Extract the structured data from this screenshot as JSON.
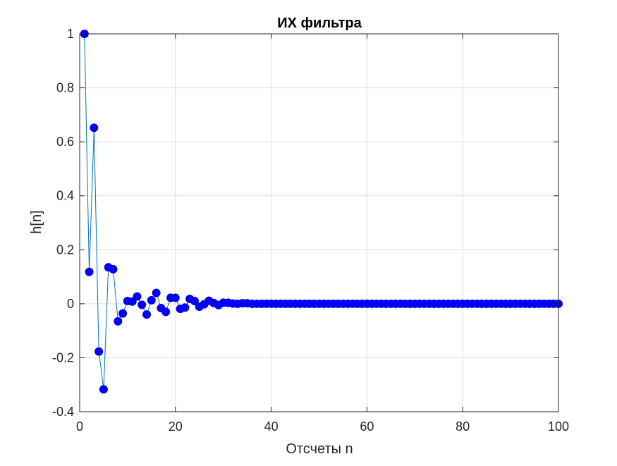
{
  "chart_data": {
    "type": "line",
    "title": "ИХ фильтра",
    "xlabel": "Отсчеты n",
    "ylabel": "h[n]",
    "xlim": [
      0,
      100
    ],
    "ylim": [
      -0.4,
      1
    ],
    "grid": true,
    "colors": {
      "line": "#0072BD",
      "marker_fill": "#0000FF",
      "marker_edge": "#0000CC"
    },
    "x_ticks": [
      {
        "value": 0,
        "label": "0"
      },
      {
        "value": 20,
        "label": "20"
      },
      {
        "value": 40,
        "label": "40"
      },
      {
        "value": 60,
        "label": "60"
      },
      {
        "value": 80,
        "label": "80"
      },
      {
        "value": 100,
        "label": "100"
      }
    ],
    "y_ticks": [
      {
        "value": -0.4,
        "label": "-0.4"
      },
      {
        "value": -0.2,
        "label": "-0.2"
      },
      {
        "value": 0,
        "label": "0"
      },
      {
        "value": 0.2,
        "label": "0.2"
      },
      {
        "value": 0.4,
        "label": "0.4"
      },
      {
        "value": 0.6,
        "label": "0.6"
      },
      {
        "value": 0.8,
        "label": "0.8"
      },
      {
        "value": 1,
        "label": "1"
      }
    ],
    "series": [
      {
        "x": [
          1,
          2,
          3,
          4,
          5,
          6,
          7,
          8,
          9,
          10,
          11,
          12,
          13,
          14,
          15,
          16,
          17,
          18,
          19,
          20,
          21,
          22,
          23,
          24,
          25,
          26,
          27,
          28,
          29,
          30,
          31,
          32,
          33,
          34,
          35,
          36,
          37,
          38,
          39,
          40,
          41,
          42,
          43,
          44,
          45,
          46,
          47,
          48,
          49,
          50,
          51,
          52,
          53,
          54,
          55,
          56,
          57,
          58,
          59,
          60,
          61,
          62,
          63,
          64,
          65,
          66,
          67,
          68,
          69,
          70,
          71,
          72,
          73,
          74,
          75,
          76,
          77,
          78,
          79,
          80,
          81,
          82,
          83,
          84,
          85,
          86,
          87,
          88,
          89,
          90,
          91,
          92,
          93,
          94,
          95,
          96,
          97,
          98,
          99,
          100
        ],
        "values": [
          1.0,
          0.118,
          0.652,
          -0.177,
          -0.317,
          0.135,
          0.128,
          -0.065,
          -0.036,
          0.01,
          0.008,
          0.027,
          -0.004,
          -0.04,
          0.013,
          0.04,
          -0.016,
          -0.03,
          0.022,
          0.022,
          -0.019,
          -0.014,
          0.018,
          0.01,
          -0.011,
          -0.002,
          0.011,
          0.003,
          -0.005,
          0.004,
          0.004,
          0.001,
          0.0,
          0.002,
          0.002,
          0.0,
          0.0,
          0.0,
          0.0,
          0.0,
          0.0,
          0.0,
          0.0,
          0.0,
          0.0,
          0.0,
          0.0,
          0.0,
          0.0,
          0.0,
          0.0,
          0.0,
          0.0,
          0.0,
          0.0,
          0.0,
          0.0,
          0.0,
          0.0,
          0.0,
          0.0,
          0.0,
          0.0,
          0.0,
          0.0,
          0.0,
          0.0,
          0.0,
          0.0,
          0.0,
          0.0,
          0.0,
          0.0,
          0.0,
          0.0,
          0.0,
          0.0,
          0.0,
          0.0,
          0.0,
          0.0,
          0.0,
          0.0,
          0.0,
          0.0,
          0.0,
          0.0,
          0.0,
          0.0,
          0.0,
          0.0,
          0.0,
          0.0,
          0.0,
          0.0,
          0.0,
          0.0,
          0.0,
          0.0,
          0.0
        ]
      }
    ]
  }
}
